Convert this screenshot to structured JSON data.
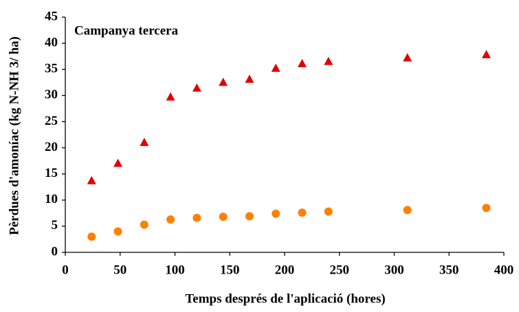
{
  "chart_data": {
    "type": "scatter",
    "annotation": "Campanya tercera",
    "xlabel": "Temps després de l'aplicació (hores)",
    "ylabel": "Pèrdues d'amoníac (kg N-NH 3/ ha)",
    "x": [
      24,
      48,
      72,
      96,
      120,
      144,
      168,
      192,
      216,
      240,
      312,
      384
    ],
    "series": [
      {
        "color": "#e00000",
        "marker": "triangle",
        "values": [
          13.7,
          17,
          21,
          29.7,
          31.4,
          32.5,
          33.1,
          35.2,
          36.1,
          36.5,
          37.2,
          37.8
        ]
      },
      {
        "color": "#ff8000",
        "marker": "circle",
        "values": [
          3,
          4,
          5.3,
          6.3,
          6.6,
          6.8,
          6.9,
          7.4,
          7.6,
          7.8,
          8.1,
          8.5
        ]
      }
    ],
    "xlim": [
      0,
      400
    ],
    "xticks": [
      0,
      50,
      100,
      150,
      200,
      250,
      300,
      350,
      400
    ],
    "ylim": [
      0,
      45
    ],
    "yticks": [
      0,
      5,
      10,
      15,
      20,
      25,
      30,
      35,
      40,
      45
    ],
    "grid": false
  }
}
